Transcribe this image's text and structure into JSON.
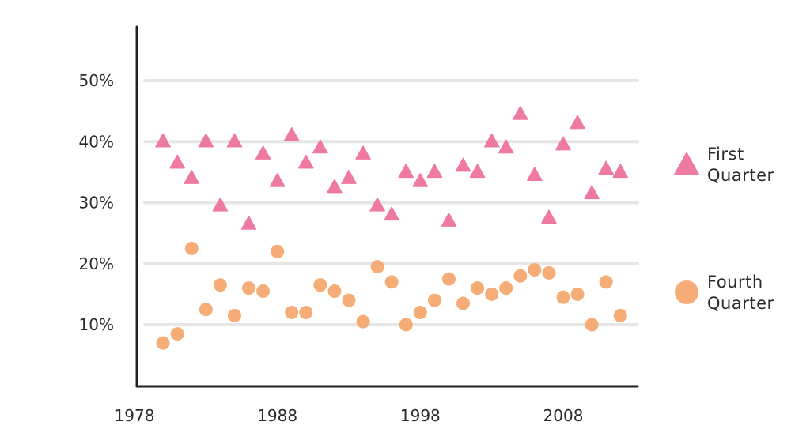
{
  "chart_data": {
    "type": "scatter",
    "title": "",
    "xlabel": "",
    "ylabel": "",
    "xlim": [
      1978,
      2013
    ],
    "ylim": [
      0,
      55
    ],
    "x_ticks": [
      1978,
      1988,
      1998,
      2008
    ],
    "x_tick_labels": [
      "1978",
      "1988",
      "1998",
      "2008"
    ],
    "y_ticks": [
      10,
      20,
      30,
      40,
      50
    ],
    "y_tick_labels": [
      "10%",
      "20%",
      "30%",
      "40%",
      "50%"
    ],
    "grid": "horizontal",
    "legend_position": "right",
    "series": [
      {
        "name": "First Quarter",
        "marker": "triangle",
        "color": "#ee7aa2",
        "legend_lines": [
          "First",
          "Quarter"
        ],
        "x": [
          1980,
          1981,
          1982,
          1983,
          1984,
          1985,
          1986,
          1987,
          1988,
          1989,
          1990,
          1991,
          1992,
          1993,
          1994,
          1995,
          1996,
          1997,
          1998,
          1999,
          2000,
          2001,
          2002,
          2003,
          2004,
          2005,
          2006,
          2007,
          2008,
          2009,
          2010,
          2011,
          2012
        ],
        "y": [
          40,
          36.5,
          34,
          40,
          29.5,
          40,
          26.5,
          38,
          33.5,
          41,
          36.5,
          39,
          32.5,
          34,
          38,
          29.5,
          28,
          35,
          33.5,
          35,
          27,
          36,
          35,
          40,
          39,
          44.5,
          34.5,
          27.5,
          39.5,
          43,
          31.5,
          35.5,
          35
        ]
      },
      {
        "name": "Fourth Quarter",
        "marker": "circle",
        "color": "#f5a56a",
        "legend_lines": [
          "Fourth",
          "Quarter"
        ],
        "x": [
          1980,
          1981,
          1982,
          1983,
          1984,
          1985,
          1986,
          1987,
          1988,
          1989,
          1990,
          1991,
          1992,
          1993,
          1994,
          1995,
          1996,
          1997,
          1998,
          1999,
          2000,
          2001,
          2002,
          2003,
          2004,
          2005,
          2006,
          2007,
          2008,
          2009,
          2010,
          2011,
          2012
        ],
        "y": [
          7,
          8.5,
          22.5,
          12.5,
          16.5,
          11.5,
          16,
          15.5,
          22,
          12,
          12,
          16.5,
          15.5,
          14,
          10.5,
          19.5,
          17,
          10,
          12,
          14,
          17.5,
          13.5,
          16,
          15,
          16,
          18,
          19,
          18.5,
          14.5,
          15,
          10,
          17,
          11.5
        ]
      }
    ]
  }
}
